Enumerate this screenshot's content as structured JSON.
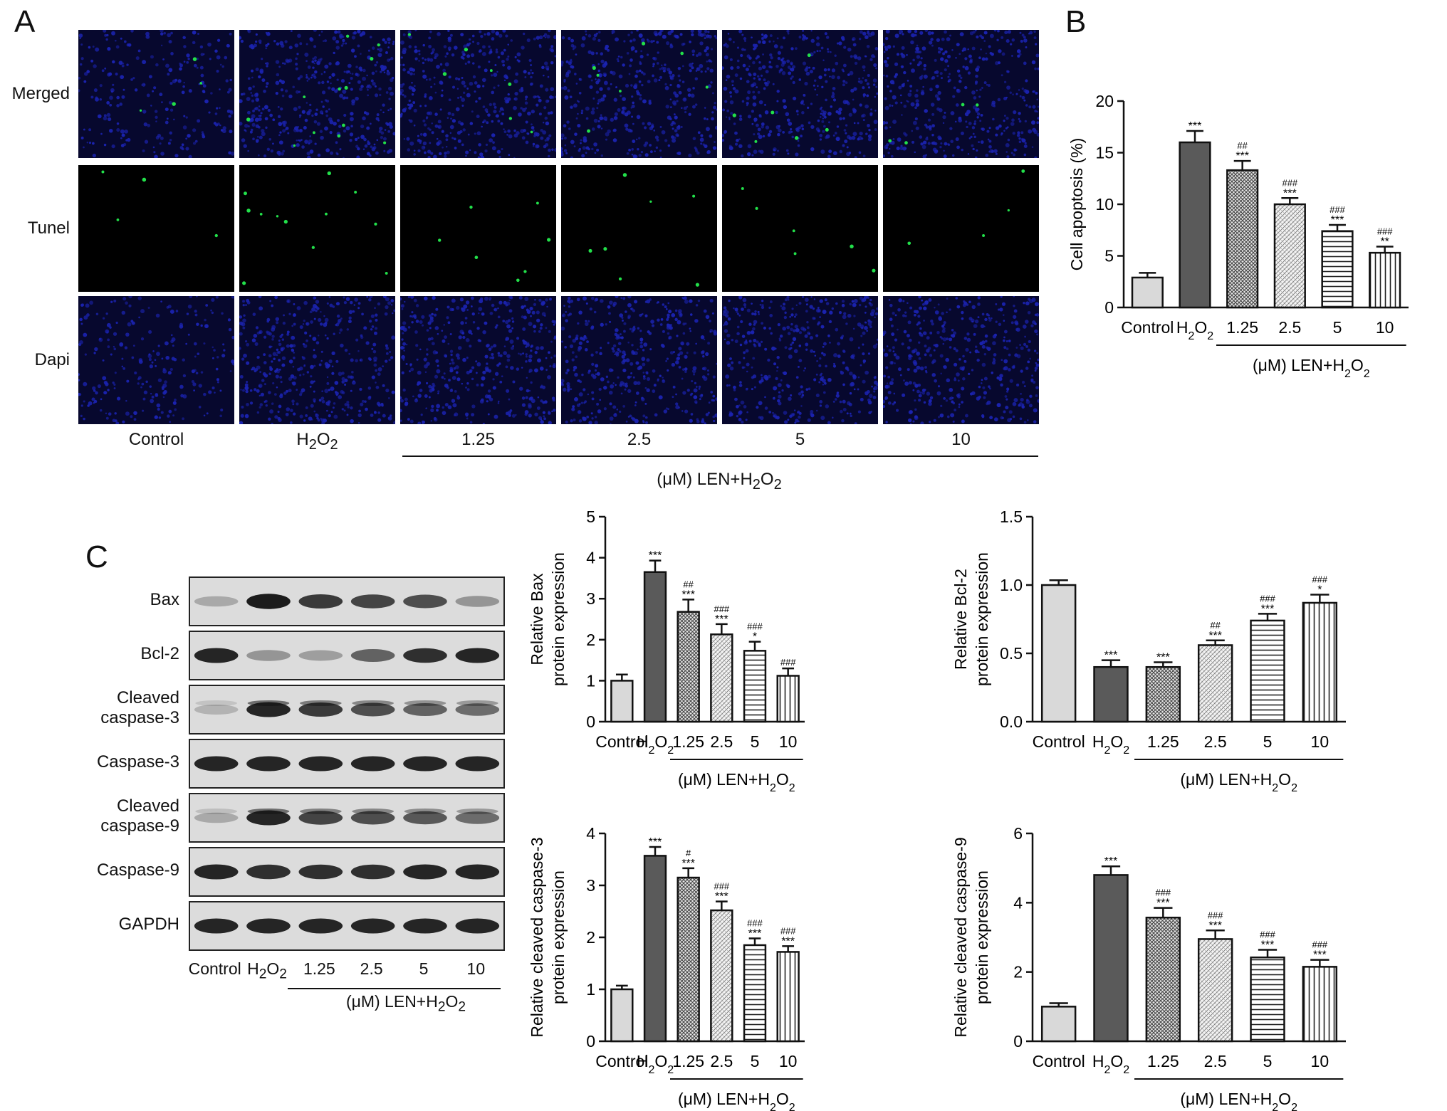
{
  "panels": {
    "A": "A",
    "B": "B",
    "C": "C"
  },
  "panel_a": {
    "rows": [
      "Merged",
      "Tunel",
      "Dapi"
    ],
    "columns": [
      "Control",
      "H2O2",
      "1.25",
      "2.5",
      "5",
      "10"
    ],
    "group_label": "(μM) LEN+H2O2",
    "colors": {
      "dapi": "#1b23b0",
      "tunel": "#22e04a",
      "background": "#000000"
    }
  },
  "panel_c_blot": {
    "proteins": [
      "Bax",
      "Bcl-2",
      "Cleaved\ncaspase-3",
      "Caspase-3",
      "Cleaved\ncaspase-9",
      "Caspase-9",
      "GAPDH"
    ],
    "lanes": [
      "Control",
      "H2O2",
      "1.25",
      "2.5",
      "5",
      "10"
    ],
    "group_label": "(μM) LEN+H2O2"
  },
  "group_label": "(μM) LEN+H2O2",
  "chart_data": [
    {
      "id": "apoptosis",
      "type": "bar",
      "categories": [
        "Control",
        "H2O2",
        "1.25",
        "2.5",
        "5",
        "10"
      ],
      "values": [
        2.9,
        16.0,
        13.3,
        10.0,
        7.4,
        5.3
      ],
      "errors": [
        0.45,
        1.1,
        0.9,
        0.6,
        0.6,
        0.6
      ],
      "ylabel": "Cell apoptosis (%)",
      "ylim": [
        0,
        20
      ],
      "yticks": [
        "0",
        "5",
        "10",
        "15",
        "20"
      ],
      "annotations": [
        [
          "",
          ""
        ],
        [
          "***",
          ""
        ],
        [
          "***",
          "##"
        ],
        [
          "***",
          "###"
        ],
        [
          "***",
          "###"
        ],
        [
          "**",
          "###"
        ]
      ],
      "group_label": "(μM) LEN+H2O2"
    },
    {
      "id": "bax",
      "type": "bar",
      "categories": [
        "Control",
        "H2O2",
        "1.25",
        "2.5",
        "5",
        "10"
      ],
      "values": [
        1.0,
        3.65,
        2.68,
        2.13,
        1.73,
        1.12
      ],
      "errors": [
        0.15,
        0.28,
        0.3,
        0.25,
        0.22,
        0.18
      ],
      "ylabel": "Relative Bax\nprotein expression",
      "ylim": [
        0,
        5
      ],
      "yticks": [
        "0",
        "1",
        "2",
        "3",
        "4",
        "5"
      ],
      "annotations": [
        [
          "",
          ""
        ],
        [
          "***",
          ""
        ],
        [
          "***",
          "##"
        ],
        [
          "***",
          "###"
        ],
        [
          "*",
          "###"
        ],
        [
          "",
          "###"
        ]
      ],
      "group_label": "(μM) LEN+H2O2"
    },
    {
      "id": "bcl2",
      "type": "bar",
      "categories": [
        "Control",
        "H2O2",
        "1.25",
        "2.5",
        "5",
        "10"
      ],
      "values": [
        1.0,
        0.4,
        0.4,
        0.56,
        0.74,
        0.87
      ],
      "errors": [
        0.035,
        0.05,
        0.035,
        0.035,
        0.05,
        0.06
      ],
      "ylabel": "Relative Bcl-2\nprotein expression",
      "ylim": [
        0,
        1.5
      ],
      "yticks": [
        "0.0",
        "0.5",
        "1.0",
        "1.5"
      ],
      "annotations": [
        [
          "",
          ""
        ],
        [
          "***",
          ""
        ],
        [
          "***",
          ""
        ],
        [
          "***",
          "##"
        ],
        [
          "***",
          "###"
        ],
        [
          "*",
          "###"
        ]
      ],
      "group_label": "(μM) LEN+H2O2"
    },
    {
      "id": "casp3",
      "type": "bar",
      "categories": [
        "Control",
        "H2O2",
        "1.25",
        "2.5",
        "5",
        "10"
      ],
      "values": [
        1.0,
        3.57,
        3.15,
        2.52,
        1.85,
        1.72
      ],
      "errors": [
        0.07,
        0.17,
        0.18,
        0.17,
        0.13,
        0.11
      ],
      "ylabel": "Relative cleaved caspase-3\nprotein expression",
      "ylim": [
        0,
        4
      ],
      "yticks": [
        "0",
        "1",
        "2",
        "3",
        "4"
      ],
      "annotations": [
        [
          "",
          ""
        ],
        [
          "***",
          ""
        ],
        [
          "***",
          "#"
        ],
        [
          "***",
          "###"
        ],
        [
          "***",
          "###"
        ],
        [
          "***",
          "###"
        ]
      ],
      "group_label": "(μM) LEN+H2O2"
    },
    {
      "id": "casp9",
      "type": "bar",
      "categories": [
        "Control",
        "H2O2",
        "1.25",
        "2.5",
        "5",
        "10"
      ],
      "values": [
        1.0,
        4.8,
        3.57,
        2.95,
        2.42,
        2.15
      ],
      "errors": [
        0.1,
        0.25,
        0.28,
        0.25,
        0.22,
        0.2
      ],
      "ylabel": "Relative cleaved caspase-9\nprotein expression",
      "ylim": [
        0,
        6
      ],
      "yticks": [
        "0",
        "2",
        "4",
        "6"
      ],
      "annotations": [
        [
          "",
          ""
        ],
        [
          "***",
          ""
        ],
        [
          "***",
          "###"
        ],
        [
          "***",
          "###"
        ],
        [
          "***",
          "###"
        ],
        [
          "***",
          "###"
        ]
      ],
      "group_label": "(μM) LEN+H2O2"
    }
  ]
}
